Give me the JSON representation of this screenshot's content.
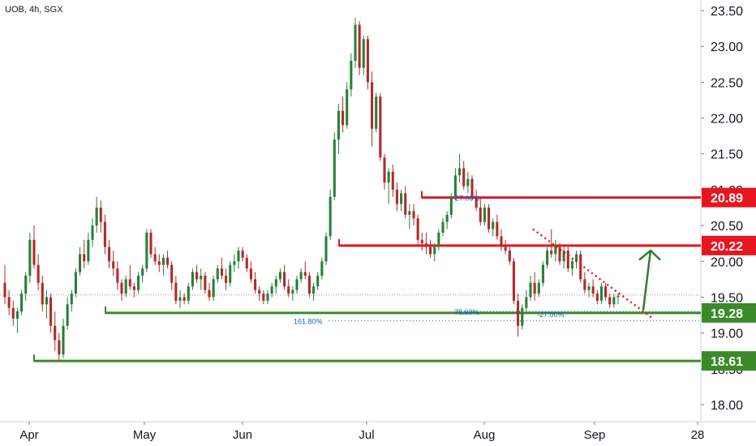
{
  "header": {
    "symbol": "UOB, 4h, SGX"
  },
  "chart_data": {
    "type": "candlestick",
    "price_axis": {
      "ticks": [
        18.0,
        18.5,
        19.0,
        19.5,
        20.0,
        20.5,
        21.0,
        21.5,
        22.0,
        22.5,
        23.0,
        23.5
      ],
      "tick_labels": [
        "18.00",
        "18.50",
        "19.00",
        "19.50",
        "20.00",
        "20.50",
        "21.00",
        "21.50",
        "22.00",
        "22.50",
        "23.00",
        "23.50"
      ]
    },
    "time_axis": {
      "labels": [
        "Apr",
        "May",
        "Jun",
        "Jul",
        "Aug",
        "Sep",
        "28"
      ]
    },
    "levels": [
      {
        "label": "20.89",
        "value": 20.89,
        "color": "#e8141f",
        "kind": "resistance"
      },
      {
        "label": "20.22",
        "value": 20.22,
        "color": "#e8141f",
        "kind": "resistance"
      },
      {
        "label": "19.28",
        "value": 19.28,
        "color": "#3a8a2a",
        "kind": "support"
      },
      {
        "label": "18.61",
        "value": 18.61,
        "color": "#3a8a2a",
        "kind": "support"
      }
    ],
    "fib_annotations": [
      {
        "label": "-27.00%",
        "value": 20.89
      },
      {
        "label": "78.60%",
        "value": 19.3
      },
      {
        "label": "-27.00%",
        "value": 19.27
      },
      {
        "label": "161.80%",
        "value": 19.17
      }
    ],
    "current_price_value": 19.53,
    "colors": {
      "up": "#26803a",
      "down": "#b22a2a",
      "dotted_trend": "#e8141f",
      "arrow": "#2e7d32",
      "fib": "#1565c0"
    },
    "candles": [
      [
        19.7,
        19.95,
        19.4,
        19.5
      ],
      [
        19.5,
        19.6,
        19.25,
        19.35
      ],
      [
        19.35,
        19.45,
        19.1,
        19.2
      ],
      [
        19.2,
        19.35,
        19.0,
        19.3
      ],
      [
        19.3,
        19.6,
        19.25,
        19.55
      ],
      [
        19.55,
        19.85,
        19.45,
        19.8
      ],
      [
        19.8,
        20.4,
        19.7,
        20.3
      ],
      [
        20.3,
        20.5,
        19.9,
        19.95
      ],
      [
        19.95,
        20.1,
        19.6,
        19.7
      ],
      [
        19.7,
        19.8,
        19.3,
        19.4
      ],
      [
        19.4,
        19.6,
        19.2,
        19.5
      ],
      [
        19.5,
        19.55,
        19.0,
        19.1
      ],
      [
        19.1,
        19.3,
        18.75,
        18.9
      ],
      [
        18.9,
        19.0,
        18.6,
        18.7
      ],
      [
        18.7,
        19.2,
        18.65,
        19.1
      ],
      [
        19.1,
        19.5,
        19.05,
        19.4
      ],
      [
        19.4,
        19.6,
        19.3,
        19.55
      ],
      [
        19.55,
        19.9,
        19.5,
        19.85
      ],
      [
        19.85,
        20.2,
        19.8,
        20.1
      ],
      [
        20.1,
        20.3,
        19.9,
        20.0
      ],
      [
        20.0,
        20.4,
        19.95,
        20.3
      ],
      [
        20.3,
        20.6,
        20.2,
        20.5
      ],
      [
        20.5,
        20.9,
        20.4,
        20.75
      ],
      [
        20.75,
        20.85,
        20.4,
        20.55
      ],
      [
        20.55,
        20.65,
        20.1,
        20.2
      ],
      [
        20.2,
        20.3,
        19.9,
        20.0
      ],
      [
        20.0,
        20.15,
        19.8,
        19.9
      ],
      [
        19.9,
        20.0,
        19.6,
        19.7
      ],
      [
        19.7,
        19.75,
        19.45,
        19.55
      ],
      [
        19.55,
        19.8,
        19.5,
        19.75
      ],
      [
        19.75,
        19.95,
        19.6,
        19.65
      ],
      [
        19.65,
        19.7,
        19.5,
        19.6
      ],
      [
        19.6,
        19.85,
        19.55,
        19.8
      ],
      [
        19.8,
        19.95,
        19.7,
        19.9
      ],
      [
        19.9,
        20.45,
        19.85,
        20.4
      ],
      [
        20.4,
        20.45,
        20.05,
        20.1
      ],
      [
        20.1,
        20.2,
        19.95,
        20.0
      ],
      [
        20.0,
        20.1,
        19.85,
        19.95
      ],
      [
        19.95,
        20.1,
        19.8,
        20.05
      ],
      [
        20.05,
        20.15,
        19.9,
        19.95
      ],
      [
        19.95,
        20.0,
        19.6,
        19.7
      ],
      [
        19.7,
        19.8,
        19.4,
        19.45
      ],
      [
        19.45,
        19.6,
        19.35,
        19.5
      ],
      [
        19.5,
        19.55,
        19.4,
        19.45
      ],
      [
        19.45,
        19.7,
        19.4,
        19.65
      ],
      [
        19.65,
        19.9,
        19.6,
        19.85
      ],
      [
        19.85,
        19.95,
        19.7,
        19.75
      ],
      [
        19.75,
        19.9,
        19.6,
        19.8
      ],
      [
        19.8,
        19.85,
        19.55,
        19.6
      ],
      [
        19.6,
        19.7,
        19.45,
        19.5
      ],
      [
        19.5,
        19.8,
        19.45,
        19.75
      ],
      [
        19.75,
        19.95,
        19.7,
        19.9
      ],
      [
        19.9,
        20.05,
        19.75,
        19.8
      ],
      [
        19.8,
        19.9,
        19.6,
        19.7
      ],
      [
        19.7,
        20.0,
        19.65,
        19.95
      ],
      [
        19.95,
        20.1,
        19.85,
        20.0
      ],
      [
        20.0,
        20.2,
        19.9,
        20.15
      ],
      [
        20.15,
        20.2,
        20.0,
        20.05
      ],
      [
        20.05,
        20.1,
        19.85,
        19.9
      ],
      [
        19.9,
        20.0,
        19.7,
        19.75
      ],
      [
        19.75,
        19.85,
        19.55,
        19.6
      ],
      [
        19.6,
        19.65,
        19.45,
        19.55
      ],
      [
        19.55,
        19.6,
        19.4,
        19.45
      ],
      [
        19.45,
        19.6,
        19.4,
        19.55
      ],
      [
        19.55,
        19.7,
        19.5,
        19.65
      ],
      [
        19.65,
        19.8,
        19.55,
        19.75
      ],
      [
        19.75,
        19.9,
        19.7,
        19.85
      ],
      [
        19.85,
        19.95,
        19.6,
        19.65
      ],
      [
        19.65,
        19.75,
        19.5,
        19.55
      ],
      [
        19.55,
        19.65,
        19.45,
        19.6
      ],
      [
        19.6,
        19.8,
        19.55,
        19.75
      ],
      [
        19.75,
        19.9,
        19.7,
        19.85
      ],
      [
        19.85,
        20.0,
        19.75,
        19.8
      ],
      [
        19.8,
        19.85,
        19.5,
        19.55
      ],
      [
        19.55,
        19.7,
        19.45,
        19.65
      ],
      [
        19.65,
        19.85,
        19.6,
        19.8
      ],
      [
        19.8,
        20.05,
        19.75,
        20.0
      ],
      [
        20.0,
        20.4,
        19.95,
        20.35
      ],
      [
        20.35,
        21.0,
        20.3,
        20.9
      ],
      [
        20.9,
        21.8,
        20.85,
        21.7
      ],
      [
        21.7,
        22.2,
        21.5,
        22.1
      ],
      [
        22.1,
        22.3,
        21.8,
        21.9
      ],
      [
        21.9,
        22.5,
        21.85,
        22.4
      ],
      [
        22.4,
        22.9,
        22.3,
        22.8
      ],
      [
        22.8,
        23.4,
        22.7,
        23.3
      ],
      [
        23.3,
        23.35,
        22.6,
        22.7
      ],
      [
        22.7,
        23.15,
        22.6,
        23.1
      ],
      [
        23.1,
        23.15,
        22.4,
        22.5
      ],
      [
        22.5,
        22.65,
        21.6,
        21.85
      ],
      [
        21.85,
        22.35,
        21.8,
        22.3
      ],
      [
        22.3,
        22.35,
        21.4,
        21.45
      ],
      [
        21.45,
        21.5,
        21.0,
        21.1
      ],
      [
        21.1,
        21.3,
        20.8,
        21.25
      ],
      [
        21.25,
        21.35,
        20.9,
        21.0
      ],
      [
        21.0,
        21.1,
        20.7,
        20.8
      ],
      [
        20.8,
        21.0,
        20.7,
        20.95
      ],
      [
        20.95,
        21.05,
        20.6,
        20.65
      ],
      [
        20.65,
        20.8,
        20.45,
        20.7
      ],
      [
        20.7,
        20.8,
        20.5,
        20.6
      ],
      [
        20.6,
        20.65,
        20.2,
        20.3
      ],
      [
        20.3,
        20.4,
        20.15,
        20.25
      ],
      [
        20.25,
        20.4,
        20.1,
        20.2
      ],
      [
        20.2,
        20.3,
        20.05,
        20.1
      ],
      [
        20.1,
        20.25,
        20.0,
        20.2
      ],
      [
        20.2,
        20.45,
        20.15,
        20.4
      ],
      [
        20.4,
        20.6,
        20.35,
        20.55
      ],
      [
        20.55,
        20.7,
        20.45,
        20.65
      ],
      [
        20.65,
        20.95,
        20.6,
        20.9
      ],
      [
        20.9,
        21.3,
        20.85,
        21.2
      ],
      [
        21.2,
        21.5,
        21.1,
        21.3
      ],
      [
        21.3,
        21.4,
        21.0,
        21.05
      ],
      [
        21.05,
        21.25,
        20.95,
        21.15
      ],
      [
        21.15,
        21.2,
        20.85,
        20.9
      ],
      [
        20.9,
        21.0,
        20.7,
        20.75
      ],
      [
        20.75,
        20.9,
        20.5,
        20.55
      ],
      [
        20.55,
        20.8,
        20.5,
        20.75
      ],
      [
        20.75,
        20.8,
        20.4,
        20.45
      ],
      [
        20.45,
        20.6,
        20.35,
        20.55
      ],
      [
        20.55,
        20.65,
        20.3,
        20.35
      ],
      [
        20.35,
        20.45,
        20.15,
        20.2
      ],
      [
        20.2,
        20.3,
        20.1,
        20.15
      ],
      [
        20.15,
        20.2,
        19.95,
        20.0
      ],
      [
        20.0,
        20.05,
        19.4,
        19.45
      ],
      [
        19.45,
        19.55,
        18.95,
        19.1
      ],
      [
        19.1,
        19.4,
        19.05,
        19.35
      ],
      [
        19.35,
        19.6,
        19.3,
        19.5
      ],
      [
        19.5,
        19.8,
        19.45,
        19.7
      ],
      [
        19.7,
        19.85,
        19.45,
        19.55
      ],
      [
        19.55,
        19.75,
        19.5,
        19.7
      ],
      [
        19.7,
        20.0,
        19.65,
        19.95
      ],
      [
        19.95,
        20.2,
        19.9,
        20.15
      ],
      [
        20.15,
        20.45,
        20.05,
        20.1
      ],
      [
        20.1,
        20.3,
        20.0,
        20.2
      ],
      [
        20.2,
        20.25,
        19.95,
        20.0
      ],
      [
        20.0,
        20.2,
        19.9,
        20.15
      ],
      [
        20.15,
        20.2,
        19.85,
        19.9
      ],
      [
        19.9,
        20.05,
        19.8,
        20.0
      ],
      [
        20.0,
        20.15,
        19.9,
        20.1
      ],
      [
        20.1,
        20.15,
        19.7,
        19.75
      ],
      [
        19.75,
        19.85,
        19.55,
        19.6
      ],
      [
        19.6,
        19.7,
        19.5,
        19.65
      ],
      [
        19.65,
        19.75,
        19.5,
        19.55
      ],
      [
        19.55,
        19.6,
        19.4,
        19.45
      ],
      [
        19.45,
        19.7,
        19.4,
        19.65
      ],
      [
        19.65,
        19.7,
        19.45,
        19.5
      ],
      [
        19.5,
        19.55,
        19.35,
        19.4
      ],
      [
        19.4,
        19.55,
        19.35,
        19.5
      ],
      [
        19.5,
        19.55,
        19.4,
        19.52
      ]
    ]
  }
}
